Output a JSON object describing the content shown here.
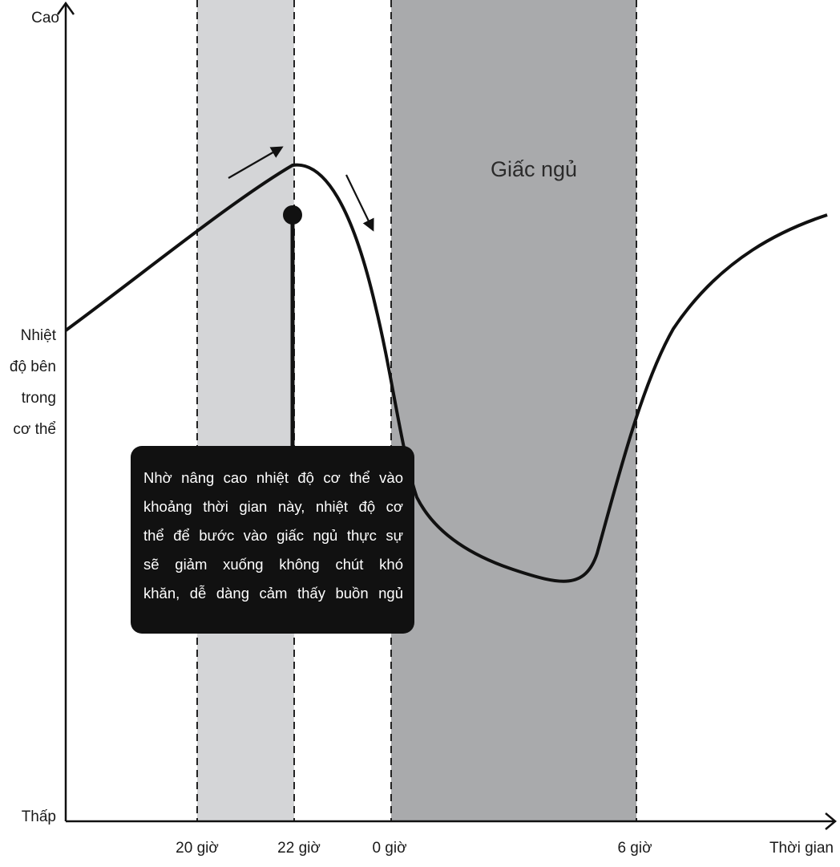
{
  "y_axis": {
    "high_label": "Cao",
    "low_label": "Thấp",
    "title_lines": [
      "Nhiệt",
      "độ bên",
      "trong",
      "cơ thể"
    ]
  },
  "x_axis": {
    "title": "Thời gian",
    "ticks": [
      "20 giờ",
      "22 giờ",
      "0 giờ",
      "6 giờ"
    ]
  },
  "sleep_region_label": "Giấc ngủ",
  "callout": {
    "lines": [
      "Nhờ nâng cao nhiệt độ cơ thể vào",
      "khoảng thời gian này, nhiệt độ cơ",
      "thể để bước vào giấc ngủ thực sự",
      "sẽ giảm xuống không chút khó",
      "khăn, dễ dàng cảm thấy buồn ngủ"
    ]
  },
  "colors": {
    "pre_sleep_band": "#d4d5d7",
    "sleep_band": "#a9aaac",
    "curve": "#111111",
    "callout_bg": "#111111",
    "callout_text": "#ffffff"
  }
}
